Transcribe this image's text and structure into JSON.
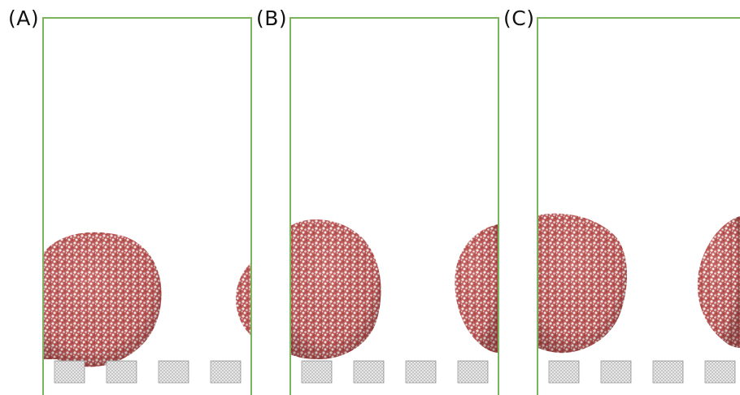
{
  "panels": [
    {
      "label": "(A)"
    },
    {
      "label": "(B)"
    },
    {
      "label": "(C)"
    }
  ],
  "colors": {
    "box_border": "#7cb35f",
    "droplet_base": "#c8625f",
    "droplet_highlight": "#f2f2f2",
    "droplet_shade": "#8e3c3c",
    "pillar": "#dcdcdc",
    "pillar_edge": "#9a9a9a"
  }
}
